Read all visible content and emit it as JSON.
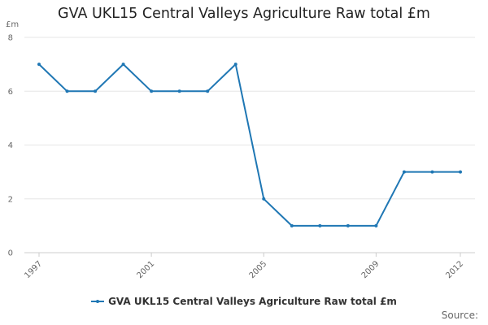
{
  "chart_data": {
    "type": "line",
    "title": "GVA UKL15 Central Valleys Agriculture Raw total £m",
    "ylabel": "£m",
    "xlabel": "",
    "x": [
      1997,
      1998,
      1999,
      2000,
      2001,
      2002,
      2003,
      2004,
      2005,
      2006,
      2007,
      2008,
      2009,
      2010,
      2011,
      2012
    ],
    "x_tick_labels": [
      "1997",
      "2001",
      "2005",
      "2009",
      "2012"
    ],
    "y_ticks": [
      0,
      2,
      4,
      6,
      8
    ],
    "ylim": [
      0,
      8
    ],
    "grid": true,
    "legend_position": "bottom",
    "series": [
      {
        "name": "GVA UKL15 Central Valleys Agriculture Raw total £m",
        "color": "#1f77b4",
        "values": [
          7,
          6,
          6,
          7,
          6,
          6,
          6,
          7,
          2,
          1,
          1,
          1,
          1,
          3,
          3,
          3
        ]
      }
    ]
  },
  "footer": {
    "source_label": "Source:"
  }
}
